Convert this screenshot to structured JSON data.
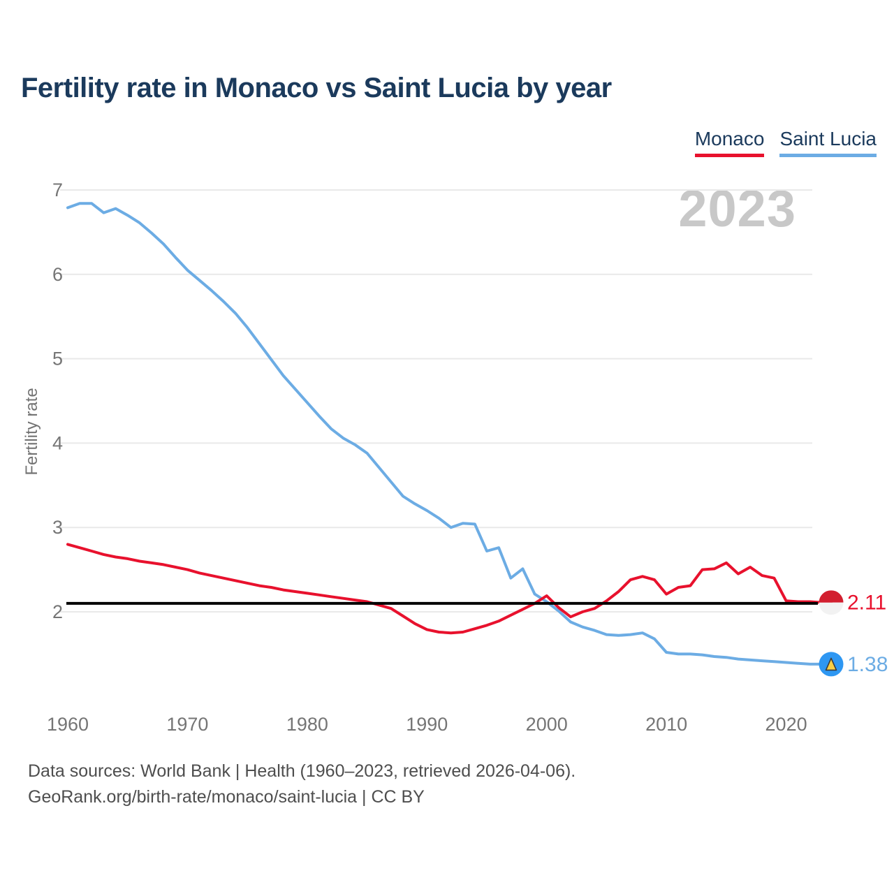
{
  "title": "Fertility rate in Monaco vs Saint Lucia by year",
  "watermark": "2023",
  "legend": {
    "monaco": {
      "label": "Monaco",
      "color": "#E8112D"
    },
    "saint_lucia": {
      "label": "Saint Lucia",
      "color": "#6CACE4"
    }
  },
  "footer": {
    "line1": "Data sources: World Bank | Health (1960–2023, retrieved 2026-04-06).",
    "line2": "GeoRank.org/birth-rate/monaco/saint-lucia | CC BY"
  },
  "chart_data": {
    "type": "line",
    "title": "Fertility rate in Monaco vs Saint Lucia by year",
    "xlabel": "",
    "ylabel": "Fertility rate",
    "xlim": [
      1960,
      2023
    ],
    "ylim": [
      1.1,
      7.2
    ],
    "grid": true,
    "legend_position": "top-right",
    "y_ticks": [
      7,
      6,
      5,
      4,
      3,
      2
    ],
    "x_ticks": [
      1960,
      1970,
      1980,
      1990,
      2000,
      2010,
      2020
    ],
    "reference_line": {
      "value": 2.1,
      "color": "#000000"
    },
    "x": [
      1960,
      1961,
      1962,
      1963,
      1964,
      1965,
      1966,
      1967,
      1968,
      1969,
      1970,
      1971,
      1972,
      1973,
      1974,
      1975,
      1976,
      1977,
      1978,
      1979,
      1980,
      1981,
      1982,
      1983,
      1984,
      1985,
      1986,
      1987,
      1988,
      1989,
      1990,
      1991,
      1992,
      1993,
      1994,
      1995,
      1996,
      1997,
      1998,
      1999,
      2000,
      2001,
      2002,
      2003,
      2004,
      2005,
      2006,
      2007,
      2008,
      2009,
      2010,
      2011,
      2012,
      2013,
      2014,
      2015,
      2016,
      2017,
      2018,
      2019,
      2020,
      2021,
      2022,
      2023
    ],
    "series": [
      {
        "name": "Saint Lucia",
        "color": "#6CACE4",
        "end_label": "1.38",
        "values": [
          6.79,
          6.84,
          6.84,
          6.73,
          6.78,
          6.7,
          6.61,
          6.49,
          6.36,
          6.2,
          6.05,
          5.93,
          5.81,
          5.68,
          5.54,
          5.37,
          5.18,
          4.99,
          4.8,
          4.64,
          4.48,
          4.32,
          4.17,
          4.06,
          3.98,
          3.88,
          3.71,
          3.54,
          3.37,
          3.28,
          3.2,
          3.11,
          3.0,
          3.05,
          3.04,
          2.72,
          2.76,
          2.4,
          2.51,
          2.21,
          2.12,
          2.01,
          1.88,
          1.82,
          1.78,
          1.73,
          1.72,
          1.73,
          1.75,
          1.68,
          1.52,
          1.5,
          1.5,
          1.49,
          1.47,
          1.46,
          1.44,
          1.43,
          1.42,
          1.41,
          1.4,
          1.39,
          1.38,
          1.38
        ]
      },
      {
        "name": "Monaco",
        "color": "#E8112D",
        "end_label": "2.11",
        "values": [
          2.8,
          2.76,
          2.72,
          2.68,
          2.65,
          2.63,
          2.6,
          2.58,
          2.56,
          2.53,
          2.5,
          2.46,
          2.43,
          2.4,
          2.37,
          2.34,
          2.31,
          2.29,
          2.26,
          2.24,
          2.22,
          2.2,
          2.18,
          2.16,
          2.14,
          2.12,
          2.08,
          2.04,
          1.95,
          1.86,
          1.79,
          1.76,
          1.75,
          1.76,
          1.8,
          1.84,
          1.89,
          1.96,
          2.03,
          2.1,
          2.19,
          2.05,
          1.94,
          2.0,
          2.04,
          2.13,
          2.24,
          2.38,
          2.42,
          2.38,
          2.21,
          2.29,
          2.31,
          2.5,
          2.51,
          2.58,
          2.45,
          2.53,
          2.43,
          2.4,
          2.13,
          2.12,
          2.12,
          2.11
        ]
      }
    ]
  }
}
